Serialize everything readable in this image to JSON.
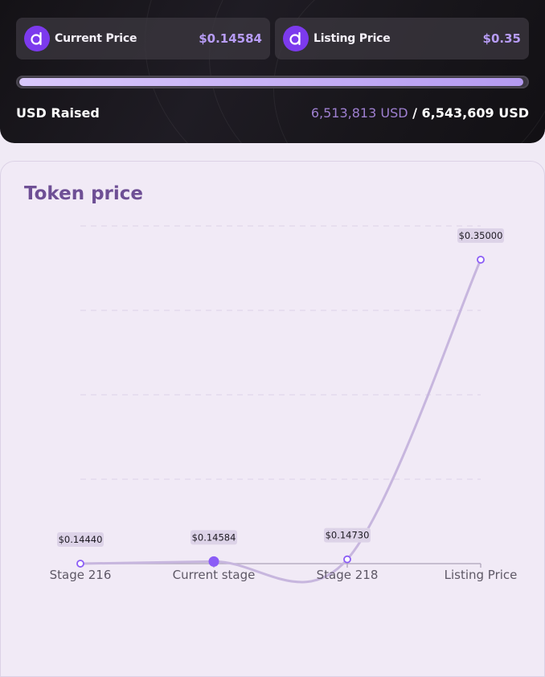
{
  "stats": {
    "current": {
      "label": "Current Price",
      "value": "$0.14584",
      "icon": "token-logo-icon"
    },
    "listing": {
      "label": "Listing Price",
      "value": "$0.35",
      "icon": "token-logo-icon"
    }
  },
  "progress": {
    "fraction": 0.995
  },
  "raised": {
    "label": "USD Raised",
    "amount": "6,513,813 USD",
    "separator": " / ",
    "target": "6,543,609 USD"
  },
  "panel": {
    "title": "Token price"
  },
  "chart_data": {
    "type": "line",
    "categories": [
      "Stage 216",
      "Current stage",
      "Stage 218",
      "Listing Price"
    ],
    "values": [
      0.1444,
      0.14584,
      0.1473,
      0.35
    ],
    "data_labels": [
      "$0.14440",
      "$0.14584",
      "$0.14730",
      "$0.35000"
    ],
    "highlight_index": 1,
    "grid": true,
    "colors": {
      "line": "#c7b6de",
      "point": "#8b5cf6",
      "label_bg": "#ddd3e8"
    }
  }
}
